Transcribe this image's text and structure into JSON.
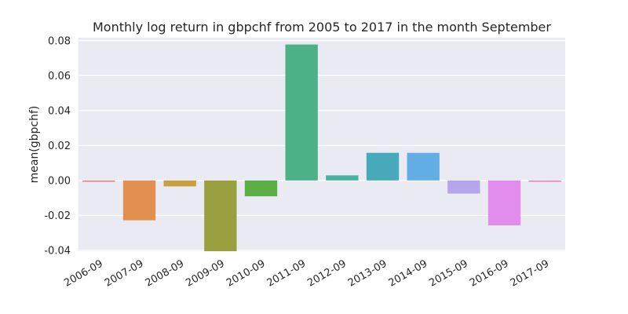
{
  "chart_data": {
    "type": "bar",
    "title": "Monthly log return in gbpchf from 2005 to 2017 in the month September",
    "xlabel": "",
    "ylabel": "mean(gbpchf)",
    "categories": [
      "2006-09",
      "2007-09",
      "2008-09",
      "2009-09",
      "2010-09",
      "2011-09",
      "2012-09",
      "2013-09",
      "2014-09",
      "2015-09",
      "2016-09",
      "2017-09"
    ],
    "values": [
      -0.0008,
      -0.0228,
      -0.0034,
      -0.0405,
      -0.0091,
      0.0778,
      0.0029,
      0.0158,
      0.0158,
      -0.0075,
      -0.0257,
      -0.0008
    ],
    "colors": [
      "#e8868f",
      "#e28f4f",
      "#c7a040",
      "#98a03f",
      "#5cae47",
      "#4cb187",
      "#4ab19c",
      "#48a9bb",
      "#62aee4",
      "#b5a6eb",
      "#e28ded",
      "#e98ab2"
    ],
    "yticks": [
      "0.08",
      "0.06",
      "0.04",
      "0.02",
      "0.00",
      "-0.02",
      "-0.04"
    ],
    "ylim": [
      -0.0405,
      0.0817
    ],
    "grid": true,
    "background": "#eaeaf2"
  }
}
